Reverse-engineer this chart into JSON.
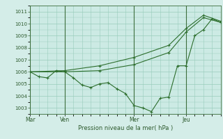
{
  "xlabel": "Pression niveau de la mer( hPa )",
  "bg_color": "#d4ede8",
  "plot_bg_color": "#cceae4",
  "grid_color": "#99ccbb",
  "line_color": "#2d6e2d",
  "ylim": [
    1002.5,
    1011.5
  ],
  "yticks": [
    1003,
    1004,
    1005,
    1006,
    1007,
    1008,
    1009,
    1010,
    1011
  ],
  "day_labels": [
    "Mar",
    "Ven",
    "Mer",
    "Jeu"
  ],
  "day_positions": [
    0,
    24,
    72,
    108
  ],
  "total_points": 132,
  "line1_x": [
    0,
    6,
    12,
    18,
    24,
    30,
    36,
    42,
    48,
    54,
    60,
    66,
    72,
    78,
    84,
    90,
    96,
    102,
    108,
    114,
    120,
    126,
    132
  ],
  "line1_y": [
    1006.0,
    1005.6,
    1005.5,
    1006.1,
    1006.0,
    1005.5,
    1004.9,
    1004.7,
    1005.0,
    1005.1,
    1004.6,
    1004.2,
    1003.2,
    1003.0,
    1002.7,
    1003.8,
    1003.9,
    1006.5,
    1006.5,
    1009.0,
    1009.5,
    1010.4,
    1010.1
  ],
  "line2_x": [
    0,
    24,
    48,
    72,
    96,
    108,
    120,
    132
  ],
  "line2_y": [
    1006.0,
    1006.0,
    1006.1,
    1006.6,
    1007.6,
    1009.3,
    1010.5,
    1010.1
  ],
  "line3_x": [
    0,
    24,
    48,
    72,
    96,
    108,
    120,
    132
  ],
  "line3_y": [
    1006.0,
    1006.1,
    1006.5,
    1007.2,
    1008.2,
    1009.6,
    1010.7,
    1010.2
  ]
}
